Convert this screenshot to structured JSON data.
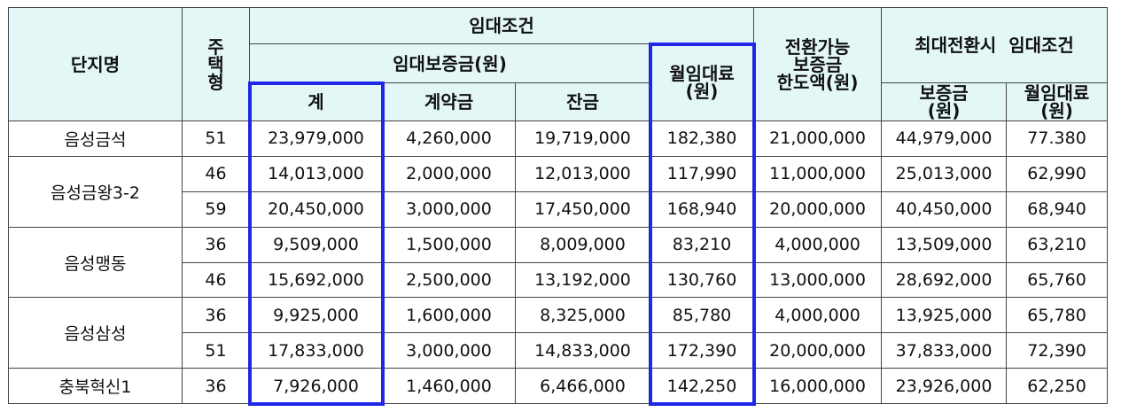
{
  "headers": {
    "complex_name": "단지명",
    "housing_type_lines": [
      "주",
      "택",
      "형"
    ],
    "rental_conditions": "임대조건",
    "deposit_group": "임대보증금(원)",
    "deposit_total": "계",
    "deposit_contract": "계약금",
    "deposit_balance": "잔금",
    "monthly_rent_lines": [
      "월임대료",
      "(원)"
    ],
    "convertible_lines": [
      "전환가능",
      "보증금",
      "한도액(원)"
    ],
    "max_conversion": "최대전환시  임대조건",
    "max_deposit_lines": [
      "보증금",
      "(원)"
    ],
    "max_rent_lines": [
      "월임대료",
      "(원)"
    ]
  },
  "complexes": [
    {
      "name": "음성금석",
      "rows": [
        {
          "type": "51",
          "total": "23,979,000",
          "contract": "4,260,000",
          "balance": "19,719,000",
          "rent": "182,380",
          "convertible": "21,000,000",
          "max_deposit": "44,979,000",
          "max_rent": "77.380"
        }
      ]
    },
    {
      "name": "음성금왕3-2",
      "rows": [
        {
          "type": "46",
          "total": "14,013,000",
          "contract": "2,000,000",
          "balance": "12,013,000",
          "rent": "117,990",
          "convertible": "11,000,000",
          "max_deposit": "25,013,000",
          "max_rent": "62,990"
        },
        {
          "type": "59",
          "total": "20,450,000",
          "contract": "3,000,000",
          "balance": "17,450,000",
          "rent": "168,940",
          "convertible": "20,000,000",
          "max_deposit": "40,450,000",
          "max_rent": "68,940"
        }
      ]
    },
    {
      "name": "음성맹동",
      "rows": [
        {
          "type": "36",
          "total": "9,509,000",
          "contract": "1,500,000",
          "balance": "8,009,000",
          "rent": "83,210",
          "convertible": "4,000,000",
          "max_deposit": "13,509,000",
          "max_rent": "63,210"
        },
        {
          "type": "46",
          "total": "15,692,000",
          "contract": "2,500,000",
          "balance": "13,192,000",
          "rent": "130,760",
          "convertible": "13,000,000",
          "max_deposit": "28,692,000",
          "max_rent": "65,760"
        }
      ]
    },
    {
      "name": "음성삼성",
      "rows": [
        {
          "type": "36",
          "total": "9,925,000",
          "contract": "1,600,000",
          "balance": "8,325,000",
          "rent": "85,780",
          "convertible": "4,000,000",
          "max_deposit": "13,925,000",
          "max_rent": "65,780"
        },
        {
          "type": "51",
          "total": "17,833,000",
          "contract": "3,000,000",
          "balance": "14,833,000",
          "rent": "172,390",
          "convertible": "20,000,000",
          "max_deposit": "37,833,000",
          "max_rent": "72,390"
        }
      ]
    },
    {
      "name": "충북혁신1",
      "rows": [
        {
          "type": "36",
          "total": "7,926,000",
          "contract": "1,460,000",
          "balance": "6,466,000",
          "rent": "142,250",
          "convertible": "16,000,000",
          "max_deposit": "23,926,000",
          "max_rent": "62,250"
        }
      ]
    }
  ],
  "highlight_color": "#1e27e6"
}
